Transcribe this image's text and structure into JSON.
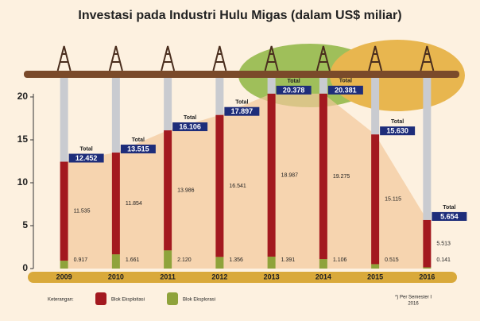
{
  "chart_data": {
    "type": "bar",
    "stacked": true,
    "title": "Investasi pada Industri Hulu Migas (dalam US$ miliar)",
    "categories": [
      "2009",
      "2010",
      "2011",
      "2012",
      "2013",
      "2014",
      "2015",
      "2016"
    ],
    "series": [
      {
        "name": "Blok Eksplorasi",
        "color": "#8fa33b",
        "values": [
          0.917,
          1.661,
          2.12,
          1.356,
          1.391,
          1.106,
          0.515,
          0.141
        ],
        "value_labels": [
          "0.917",
          "1.661",
          "2.120",
          "1.356",
          "1.391",
          "1.106",
          "0.515",
          "0.141"
        ]
      },
      {
        "name": "Blok Eksploitasi",
        "color": "#a3191f",
        "values": [
          11.535,
          11.854,
          13.986,
          16.541,
          18.987,
          19.275,
          15.115,
          5.513
        ],
        "value_labels": [
          "11.535",
          "11.854",
          "13.986",
          "16.541",
          "18.987",
          "19.275",
          "15.115",
          "5.513"
        ]
      }
    ],
    "total_label": "Total",
    "totals": {
      "values": [
        12.452,
        13.515,
        16.106,
        17.897,
        20.378,
        20.381,
        15.63,
        5.654
      ],
      "value_labels": [
        "12.452",
        "13.515",
        "16.106",
        "17.897",
        "20.378",
        "20.381",
        "15.630",
        "5.654"
      ]
    },
    "legend_title": "Keterangan:",
    "footnote": [
      "*) Per Semester I",
      "2016"
    ],
    "ylim": [
      0,
      20
    ],
    "yticks": [
      0,
      5,
      10,
      15,
      20
    ]
  }
}
